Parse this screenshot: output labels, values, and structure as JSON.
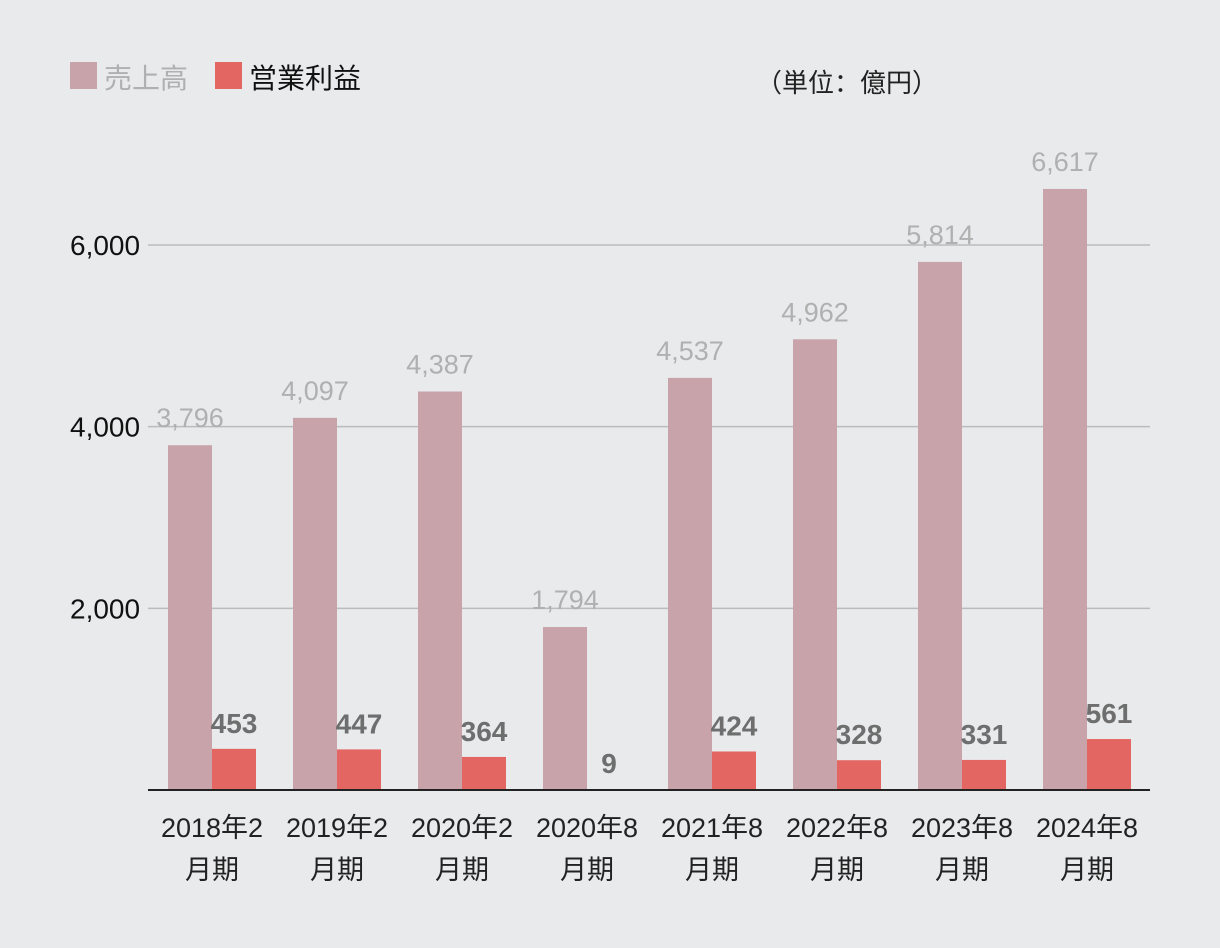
{
  "chart_data": {
    "type": "bar",
    "unit_note": "（単位：億円）",
    "categories": [
      [
        "2018年2",
        "月期"
      ],
      [
        "2019年2",
        "月期"
      ],
      [
        "2020年2",
        "月期"
      ],
      [
        "2020年8",
        "月期"
      ],
      [
        "2021年8",
        "月期"
      ],
      [
        "2022年8",
        "月期"
      ],
      [
        "2023年8",
        "月期"
      ],
      [
        "2024年8",
        "月期"
      ]
    ],
    "series": [
      {
        "name": "売上高",
        "color": "#c8a4aa",
        "label_color": "#b0b0b0",
        "values": [
          3796,
          4097,
          4387,
          1794,
          4537,
          4962,
          5814,
          6617
        ],
        "labels": [
          "3,796",
          "4,097",
          "4,387",
          "1,794",
          "4,537",
          "4,962",
          "5,814",
          "6,617"
        ]
      },
      {
        "name": "営業利益",
        "color": "#e46663",
        "label_color": "#6e6e6e",
        "values": [
          453,
          447,
          364,
          9,
          424,
          328,
          331,
          561
        ],
        "labels": [
          "453",
          "447",
          "364",
          "9",
          "424",
          "328",
          "331",
          "561"
        ]
      }
    ],
    "yticks": [
      2000,
      4000,
      6000
    ],
    "ytick_labels": [
      "2,000",
      "4,000",
      "6,000"
    ],
    "legend": "top-left",
    "grid": true,
    "title": "",
    "xlabel": "",
    "ylabel": ""
  }
}
